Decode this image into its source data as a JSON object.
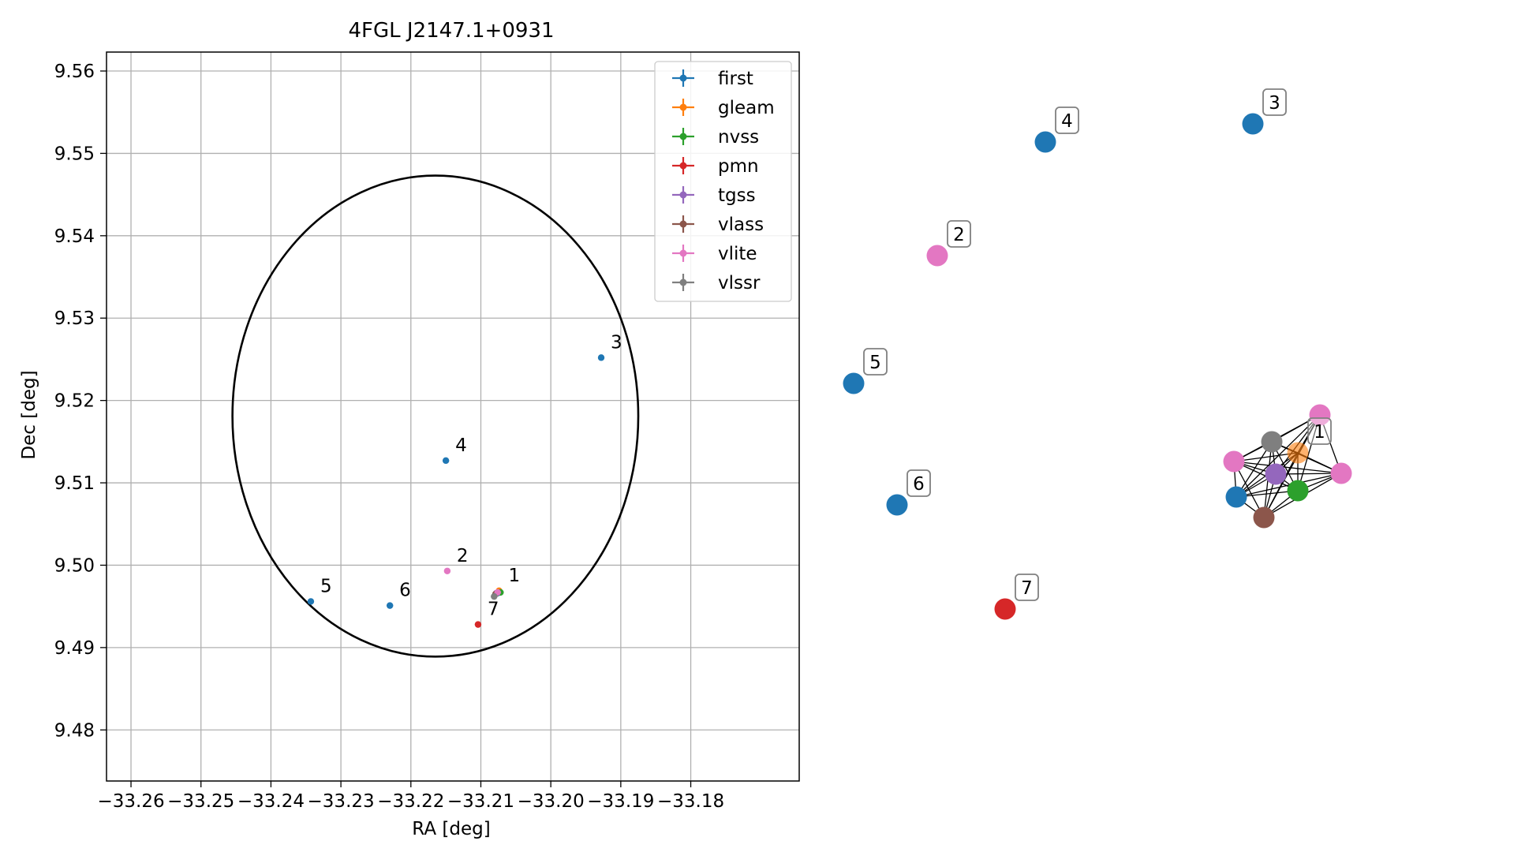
{
  "chart_data": [
    {
      "type": "scatter",
      "title": "4FGL J2147.1+0931",
      "xlabel": "RA [deg]",
      "ylabel": "Dec [deg]",
      "xlim": [
        -33.2635,
        -33.1645
      ],
      "ylim": [
        9.4738,
        9.5623
      ],
      "x_ticks": [
        -33.26,
        -33.25,
        -33.24,
        -33.23,
        -33.22,
        -33.21,
        -33.2,
        -33.19,
        -33.18
      ],
      "x_tick_labels": [
        "−33.26",
        "−33.25",
        "−33.24",
        "−33.23",
        "−33.22",
        "−33.21",
        "−33.20",
        "−33.19",
        "−33.18"
      ],
      "y_ticks": [
        9.48,
        9.49,
        9.5,
        9.51,
        9.52,
        9.53,
        9.54,
        9.55,
        9.56
      ],
      "y_tick_labels": [
        "9.48",
        "9.49",
        "9.50",
        "9.51",
        "9.52",
        "9.53",
        "9.54",
        "9.55",
        "9.56"
      ],
      "grid": true,
      "legend_position": "top-right",
      "ellipse": {
        "center": [
          -33.2165,
          9.5181
        ],
        "radius_x": 0.029,
        "radius_y": 0.0292
      },
      "series": [
        {
          "name": "first",
          "color": "#1f77b4",
          "points": [
            {
              "x": -33.2076,
              "y": 9.4966,
              "label": ""
            },
            {
              "x": -33.1928,
              "y": 9.5252,
              "label": "3"
            },
            {
              "x": -33.215,
              "y": 9.5127,
              "label": "4"
            },
            {
              "x": -33.2343,
              "y": 9.4956,
              "label": "5"
            },
            {
              "x": -33.223,
              "y": 9.4951,
              "label": "6"
            }
          ]
        },
        {
          "name": "gleam",
          "color": "#ff7f0e",
          "points": [
            {
              "x": -33.2074,
              "y": 9.4969,
              "label": "1"
            }
          ]
        },
        {
          "name": "nvss",
          "color": "#2ca02c",
          "points": [
            {
              "x": -33.2072,
              "y": 9.4967,
              "label": ""
            }
          ]
        },
        {
          "name": "pmn",
          "color": "#d62728",
          "points": [
            {
              "x": -33.2104,
              "y": 9.4928,
              "label": "7"
            }
          ]
        },
        {
          "name": "tgss",
          "color": "#9467bd",
          "points": [
            {
              "x": -33.2078,
              "y": 9.4966,
              "label": ""
            }
          ]
        },
        {
          "name": "vlass",
          "color": "#8c564b",
          "points": [
            {
              "x": -33.2079,
              "y": 9.4965,
              "label": ""
            }
          ]
        },
        {
          "name": "vlite",
          "color": "#e377c2",
          "points": [
            {
              "x": -33.2148,
              "y": 9.4993,
              "label": "2"
            },
            {
              "x": -33.2076,
              "y": 9.4967,
              "label": ""
            }
          ]
        },
        {
          "name": "vlssr",
          "color": "#7f7f7f",
          "points": [
            {
              "x": -33.2081,
              "y": 9.4962,
              "label": ""
            }
          ]
        }
      ]
    },
    {
      "type": "network",
      "labeled_nodes": [
        {
          "label": "3",
          "color": "#1f77b4"
        },
        {
          "label": "4",
          "color": "#1f77b4"
        },
        {
          "label": "2",
          "color": "#e377c2"
        },
        {
          "label": "5",
          "color": "#1f77b4"
        },
        {
          "label": "6",
          "color": "#1f77b4"
        },
        {
          "label": "7",
          "color": "#d62728"
        },
        {
          "label": "1",
          "color": "#ff7f0e"
        }
      ],
      "cluster_node_colors": [
        "#7f7f7f",
        "#e377c2",
        "#e377c2",
        "#e377c2",
        "#9467bd",
        "#2ca02c",
        "#1f77b4",
        "#8c564b",
        "#ff7f0e"
      ]
    }
  ]
}
